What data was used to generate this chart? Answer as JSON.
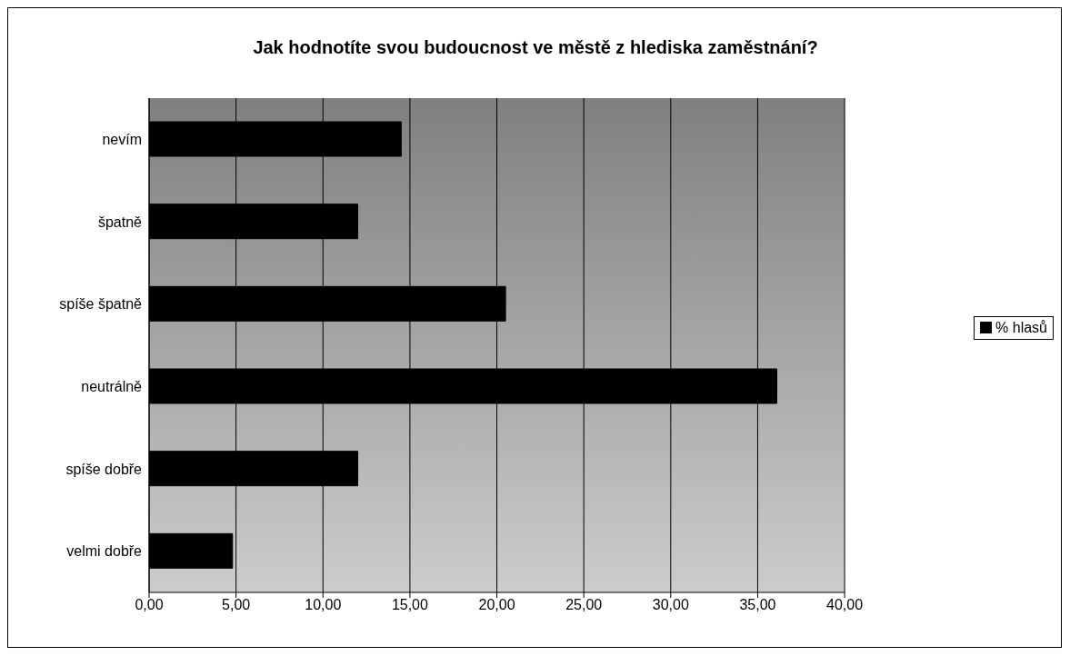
{
  "chart_data": {
    "type": "bar",
    "orientation": "horizontal",
    "title": "Jak hodnotíte svou budoucnost ve městě z hlediska zaměstnání?",
    "categories": [
      "nevím",
      "špatně",
      "spíše špatně",
      "neutrálně",
      "spíše dobře",
      "velmi dobře"
    ],
    "series": [
      {
        "name": "% hlasů",
        "color": "#000000",
        "values": [
          14.5,
          12.0,
          20.5,
          36.1,
          12.0,
          4.8
        ]
      }
    ],
    "xlim": [
      0,
      40
    ],
    "xticks": [
      {
        "value": 0,
        "label": "0,00"
      },
      {
        "value": 5,
        "label": "5,00"
      },
      {
        "value": 10,
        "label": "10,00"
      },
      {
        "value": 15,
        "label": "15,00"
      },
      {
        "value": 20,
        "label": "20,00"
      },
      {
        "value": 25,
        "label": "25,00"
      },
      {
        "value": 30,
        "label": "30,00"
      },
      {
        "value": 35,
        "label": "35,00"
      },
      {
        "value": 40,
        "label": "40,00"
      }
    ],
    "grid": "x",
    "legend": "right"
  }
}
